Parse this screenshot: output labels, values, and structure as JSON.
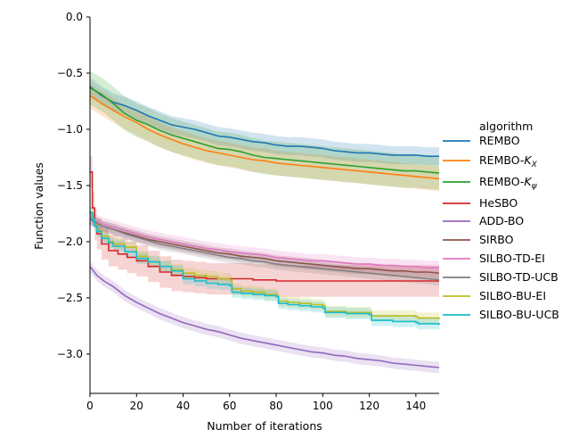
{
  "chart_data": {
    "type": "line",
    "xlabel": "Number of iterations",
    "ylabel": "Function values",
    "xlim": [
      0,
      150
    ],
    "ylim": [
      -3.35,
      0.0
    ],
    "xticks": [
      0,
      20,
      40,
      60,
      80,
      100,
      120,
      140
    ],
    "yticks": [
      0.0,
      -0.5,
      -1.0,
      -1.5,
      -2.0,
      -2.5,
      -3.0
    ],
    "ytick_labels": [
      "0.0",
      "−0.5",
      "−1.0",
      "−1.5",
      "−2.0",
      "−2.5",
      "−3.0"
    ],
    "grid": false,
    "legend": {
      "title": "algorithm",
      "placement": "right",
      "entries": [
        "REMBO",
        "REMBO-K_X",
        "REMBO-K_ψ",
        "HeSBO",
        "ADD-BO",
        "SIRBO",
        "SILBO-TD-EI",
        "SILBO-TD-UCB",
        "SILBO-BU-EI",
        "SILBO-BU-UCB"
      ]
    },
    "series": [
      {
        "name": "REMBO",
        "legend": {
          "base": "REMBO"
        },
        "color": "#1f77b4",
        "step": false,
        "x": [
          0,
          5,
          10,
          15,
          20,
          25,
          30,
          35,
          40,
          45,
          50,
          55,
          60,
          65,
          70,
          75,
          80,
          85,
          90,
          95,
          100,
          105,
          110,
          115,
          120,
          125,
          130,
          135,
          140,
          145,
          150
        ],
        "y": [
          -0.62,
          -0.7,
          -0.76,
          -0.79,
          -0.83,
          -0.88,
          -0.92,
          -0.96,
          -0.98,
          -1.0,
          -1.03,
          -1.06,
          -1.07,
          -1.09,
          -1.11,
          -1.12,
          -1.14,
          -1.15,
          -1.15,
          -1.16,
          -1.17,
          -1.19,
          -1.2,
          -1.21,
          -1.21,
          -1.22,
          -1.23,
          -1.23,
          -1.23,
          -1.24,
          -1.24
        ],
        "band": 0.08
      },
      {
        "name": "REMBO-K_X",
        "legend": {
          "base": "REMBO-",
          "italic": "K",
          "sub": "X"
        },
        "color": "#ff7f0e",
        "step": false,
        "x": [
          0,
          5,
          10,
          15,
          20,
          25,
          30,
          35,
          40,
          45,
          50,
          55,
          60,
          65,
          70,
          75,
          80,
          85,
          90,
          95,
          100,
          105,
          110,
          115,
          120,
          125,
          130,
          135,
          140,
          145,
          150
        ],
        "y": [
          -0.7,
          -0.77,
          -0.83,
          -0.89,
          -0.94,
          -1.0,
          -1.05,
          -1.09,
          -1.13,
          -1.16,
          -1.19,
          -1.21,
          -1.23,
          -1.25,
          -1.27,
          -1.28,
          -1.3,
          -1.31,
          -1.32,
          -1.33,
          -1.34,
          -1.35,
          -1.36,
          -1.37,
          -1.38,
          -1.39,
          -1.4,
          -1.41,
          -1.42,
          -1.43,
          -1.44
        ],
        "band": 0.11
      },
      {
        "name": "REMBO-K_ψ",
        "legend": {
          "base": "REMBO-",
          "italic": "K",
          "sub": "ψ"
        },
        "color": "#2ca02c",
        "step": false,
        "x": [
          0,
          5,
          10,
          15,
          20,
          25,
          30,
          35,
          40,
          45,
          50,
          55,
          60,
          65,
          70,
          75,
          80,
          85,
          90,
          95,
          100,
          105,
          110,
          115,
          120,
          125,
          130,
          135,
          140,
          145,
          150
        ],
        "y": [
          -0.63,
          -0.69,
          -0.77,
          -0.86,
          -0.92,
          -0.96,
          -1.01,
          -1.05,
          -1.08,
          -1.11,
          -1.14,
          -1.17,
          -1.18,
          -1.2,
          -1.23,
          -1.25,
          -1.26,
          -1.27,
          -1.28,
          -1.29,
          -1.3,
          -1.31,
          -1.32,
          -1.33,
          -1.34,
          -1.35,
          -1.36,
          -1.37,
          -1.37,
          -1.38,
          -1.39
        ],
        "band": 0.15
      },
      {
        "name": "HeSBO",
        "legend": {
          "base": "HeSBO"
        },
        "color": "#d62728",
        "step": true,
        "x": [
          0,
          1,
          2,
          3,
          5,
          8,
          12,
          16,
          20,
          25,
          30,
          35,
          40,
          45,
          50,
          60,
          70,
          80,
          100,
          120,
          140,
          150
        ],
        "y": [
          -1.38,
          -1.7,
          -1.85,
          -1.93,
          -2.02,
          -2.08,
          -2.11,
          -2.14,
          -2.17,
          -2.22,
          -2.27,
          -2.3,
          -2.31,
          -2.32,
          -2.33,
          -2.33,
          -2.34,
          -2.35,
          -2.35,
          -2.35,
          -2.35,
          -2.35
        ],
        "band": 0.14
      },
      {
        "name": "ADD-BO",
        "legend": {
          "base": "ADD-BO"
        },
        "color": "#9467bd",
        "step": false,
        "x": [
          0,
          3,
          6,
          10,
          15,
          20,
          25,
          30,
          35,
          40,
          45,
          50,
          55,
          60,
          65,
          70,
          75,
          80,
          85,
          90,
          95,
          100,
          105,
          110,
          115,
          120,
          125,
          130,
          135,
          140,
          145,
          150
        ],
        "y": [
          -2.22,
          -2.3,
          -2.35,
          -2.4,
          -2.48,
          -2.54,
          -2.59,
          -2.64,
          -2.68,
          -2.72,
          -2.75,
          -2.78,
          -2.8,
          -2.83,
          -2.86,
          -2.88,
          -2.9,
          -2.92,
          -2.94,
          -2.96,
          -2.98,
          -2.99,
          -3.01,
          -3.02,
          -3.04,
          -3.05,
          -3.06,
          -3.08,
          -3.09,
          -3.1,
          -3.11,
          -3.12
        ],
        "band": 0.05
      },
      {
        "name": "SIRBO",
        "legend": {
          "base": "SIRBO"
        },
        "color": "#8c564b",
        "step": false,
        "x": [
          0,
          5,
          10,
          15,
          20,
          25,
          30,
          35,
          40,
          45,
          50,
          55,
          60,
          65,
          70,
          75,
          80,
          85,
          90,
          95,
          100,
          105,
          110,
          115,
          120,
          125,
          130,
          135,
          140,
          145,
          150
        ],
        "y": [
          -1.8,
          -1.86,
          -1.89,
          -1.92,
          -1.95,
          -1.98,
          -2.0,
          -2.02,
          -2.04,
          -2.06,
          -2.08,
          -2.1,
          -2.11,
          -2.13,
          -2.14,
          -2.15,
          -2.17,
          -2.18,
          -2.19,
          -2.2,
          -2.21,
          -2.22,
          -2.23,
          -2.24,
          -2.24,
          -2.25,
          -2.26,
          -2.26,
          -2.27,
          -2.27,
          -2.28
        ],
        "band": 0.05
      },
      {
        "name": "SILBO-TD-EI",
        "legend": {
          "base": "SILBO-TD-EI"
        },
        "color": "#e377c2",
        "step": false,
        "x": [
          0,
          5,
          10,
          15,
          20,
          25,
          30,
          35,
          40,
          45,
          50,
          55,
          60,
          65,
          70,
          75,
          80,
          85,
          90,
          95,
          100,
          105,
          110,
          115,
          120,
          125,
          130,
          135,
          140,
          145,
          150
        ],
        "y": [
          -1.79,
          -1.84,
          -1.87,
          -1.9,
          -1.93,
          -1.96,
          -1.98,
          -2.0,
          -2.02,
          -2.04,
          -2.06,
          -2.07,
          -2.09,
          -2.1,
          -2.11,
          -2.12,
          -2.14,
          -2.15,
          -2.16,
          -2.17,
          -2.17,
          -2.18,
          -2.19,
          -2.2,
          -2.2,
          -2.21,
          -2.21,
          -2.22,
          -2.22,
          -2.23,
          -2.23
        ],
        "band": 0.06
      },
      {
        "name": "SILBO-TD-UCB",
        "legend": {
          "base": "SILBO-TD-UCB"
        },
        "color": "#7f7f7f",
        "step": false,
        "x": [
          0,
          5,
          10,
          15,
          20,
          25,
          30,
          35,
          40,
          45,
          50,
          55,
          60,
          65,
          70,
          75,
          80,
          85,
          90,
          95,
          100,
          105,
          110,
          115,
          120,
          125,
          130,
          135,
          140,
          145,
          150
        ],
        "y": [
          -1.8,
          -1.86,
          -1.89,
          -1.93,
          -1.96,
          -1.99,
          -2.02,
          -2.04,
          -2.06,
          -2.08,
          -2.1,
          -2.12,
          -2.14,
          -2.15,
          -2.17,
          -2.18,
          -2.2,
          -2.21,
          -2.22,
          -2.23,
          -2.24,
          -2.25,
          -2.26,
          -2.27,
          -2.28,
          -2.29,
          -2.3,
          -2.31,
          -2.32,
          -2.33,
          -2.34
        ],
        "band": 0.05
      },
      {
        "name": "SILBO-BU-EI",
        "legend": {
          "base": "SILBO-BU-EI"
        },
        "color": "#bcbd22",
        "step": true,
        "x": [
          0,
          1,
          2,
          3,
          5,
          8,
          10,
          15,
          20,
          25,
          30,
          35,
          40,
          45,
          50,
          55,
          60,
          61,
          65,
          70,
          75,
          80,
          81,
          85,
          90,
          95,
          100,
          101,
          110,
          120,
          121,
          130,
          140,
          141,
          150
        ],
        "y": [
          -1.75,
          -1.8,
          -1.85,
          -1.9,
          -1.95,
          -2.0,
          -2.02,
          -2.05,
          -2.13,
          -2.18,
          -2.22,
          -2.25,
          -2.28,
          -2.3,
          -2.31,
          -2.33,
          -2.34,
          -2.42,
          -2.44,
          -2.45,
          -2.47,
          -2.48,
          -2.53,
          -2.54,
          -2.55,
          -2.56,
          -2.57,
          -2.62,
          -2.63,
          -2.63,
          -2.66,
          -2.66,
          -2.67,
          -2.68,
          -2.69
        ],
        "band": 0.05
      },
      {
        "name": "SILBO-BU-UCB",
        "legend": {
          "base": "SILBO-BU-UCB"
        },
        "color": "#17becf",
        "step": true,
        "x": [
          0,
          1,
          2,
          3,
          5,
          8,
          10,
          15,
          20,
          25,
          30,
          35,
          40,
          45,
          50,
          55,
          60,
          61,
          65,
          70,
          75,
          80,
          81,
          85,
          90,
          95,
          100,
          101,
          110,
          120,
          121,
          130,
          140,
          141,
          150
        ],
        "y": [
          -1.74,
          -1.8,
          -1.86,
          -1.91,
          -1.97,
          -2.01,
          -2.04,
          -2.09,
          -2.15,
          -2.18,
          -2.22,
          -2.26,
          -2.33,
          -2.35,
          -2.37,
          -2.38,
          -2.39,
          -2.45,
          -2.46,
          -2.47,
          -2.48,
          -2.49,
          -2.55,
          -2.56,
          -2.57,
          -2.58,
          -2.59,
          -2.63,
          -2.64,
          -2.65,
          -2.7,
          -2.71,
          -2.72,
          -2.73,
          -2.74
        ],
        "band": 0.05
      }
    ]
  }
}
